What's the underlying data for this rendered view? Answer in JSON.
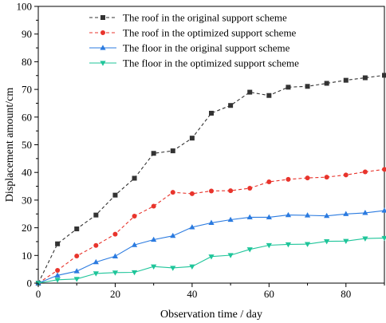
{
  "chart_data": {
    "type": "line",
    "title": "",
    "xlabel": "Observation time / day",
    "ylabel": "Displacement amount/cm",
    "xlim": [
      0,
      90
    ],
    "ylim": [
      0,
      100
    ],
    "xticks": [
      "0",
      "20",
      "40",
      "60",
      "80"
    ],
    "yticks": [
      "0",
      "10",
      "20",
      "30",
      "40",
      "50",
      "60",
      "70",
      "80",
      "90",
      "100"
    ],
    "grid": false,
    "legend_position": "top-left",
    "x": [
      0,
      5,
      10,
      15,
      20,
      25,
      30,
      35,
      40,
      45,
      50,
      55,
      60,
      65,
      70,
      75,
      80,
      85,
      90
    ],
    "series": [
      {
        "name": "The roof in the original support scheme",
        "color": "#333333",
        "line_style": "dashed",
        "marker": "square",
        "values": [
          0,
          14.2,
          19.6,
          24.6,
          31.8,
          37.9,
          46.9,
          47.8,
          52.4,
          61.4,
          64.2,
          69.0,
          67.8,
          70.8,
          71.1,
          72.2,
          73.3,
          74.2,
          75.1
        ]
      },
      {
        "name": "The roof in the optimized support scheme",
        "color": "#e8342c",
        "line_style": "dashed",
        "marker": "circle",
        "values": [
          0,
          4.6,
          9.8,
          13.6,
          17.7,
          24.2,
          27.8,
          32.8,
          32.3,
          33.3,
          33.4,
          34.3,
          36.6,
          37.5,
          38.0,
          38.3,
          39.1,
          40.2,
          41.1
        ]
      },
      {
        "name": "The floor in the original support scheme",
        "color": "#2b7be0",
        "line_style": "solid",
        "marker": "triangle-up",
        "values": [
          0,
          2.8,
          4.3,
          7.6,
          9.7,
          13.8,
          15.7,
          17.1,
          20.2,
          21.8,
          22.9,
          23.8,
          23.8,
          24.6,
          24.5,
          24.3,
          25.0,
          25.4,
          26.2
        ]
      },
      {
        "name": "The floor in the optimized support scheme",
        "color": "#1fc59a",
        "line_style": "solid",
        "marker": "triangle-down",
        "values": [
          0,
          1.2,
          1.5,
          3.5,
          3.8,
          3.9,
          6.0,
          5.5,
          6.0,
          9.6,
          10.1,
          12.2,
          13.7,
          14.0,
          14.1,
          15.1,
          15.2,
          16.1,
          16.3
        ]
      }
    ]
  }
}
